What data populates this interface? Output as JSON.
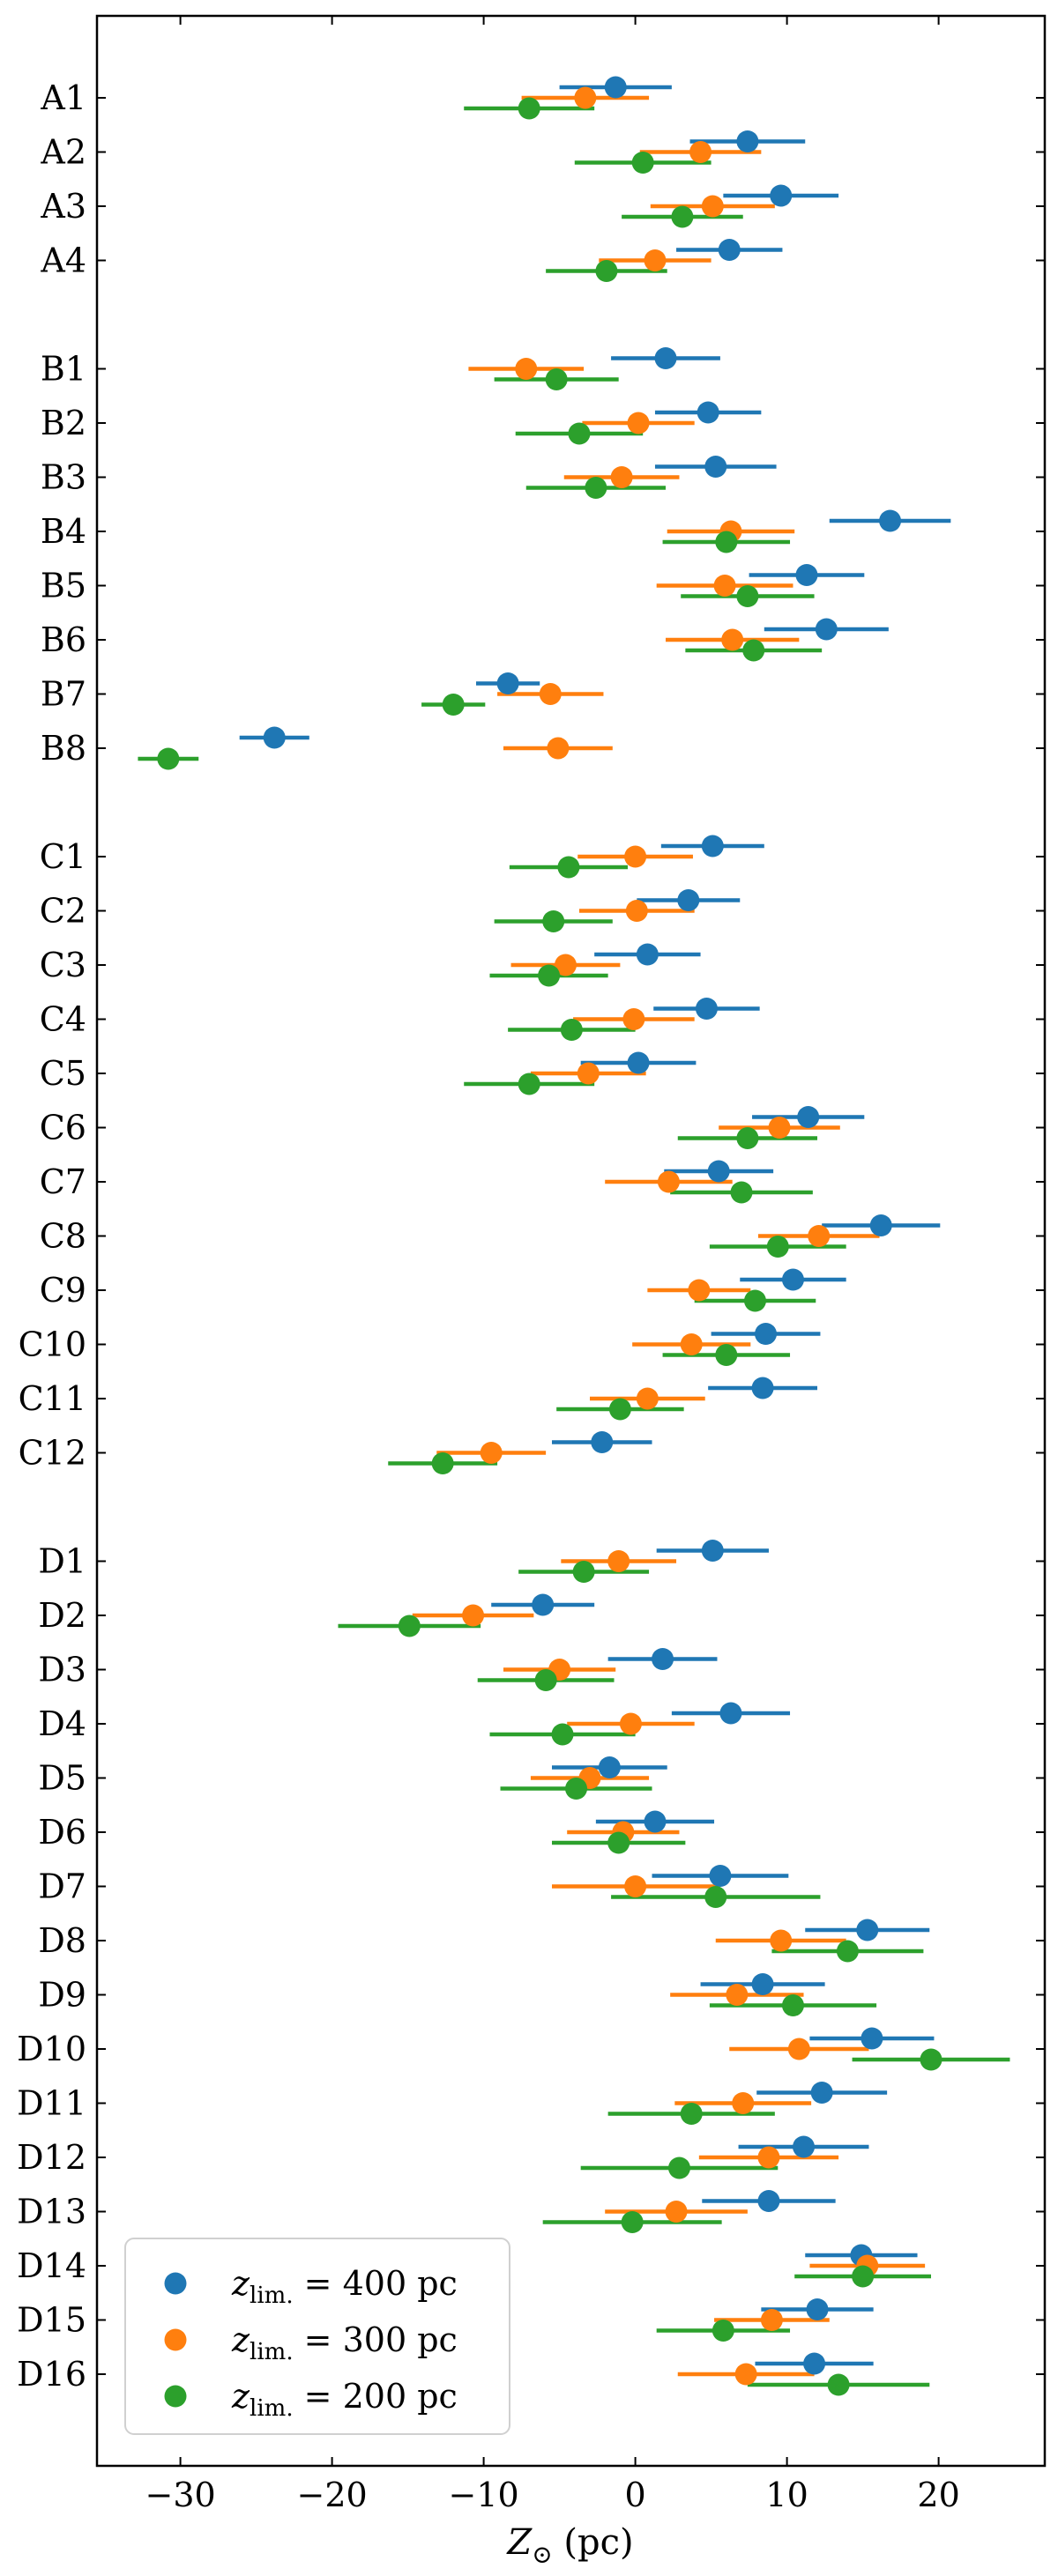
{
  "chart_data": {
    "type": "scatter",
    "title": "",
    "xlabel": "Z⊙ (pc)",
    "ylabel": "",
    "xlim": [
      -35.5,
      27.0
    ],
    "xticks": [
      -30,
      -20,
      -10,
      0,
      10,
      20
    ],
    "xtick_labels": [
      "−30",
      "−20",
      "−10",
      "0",
      "10",
      "20"
    ],
    "grid": false,
    "legend_position": "bottom-left",
    "groups": [
      {
        "name": "A",
        "labels": [
          "A1",
          "A2",
          "A3",
          "A4"
        ]
      },
      {
        "name": "B",
        "labels": [
          "B1",
          "B2",
          "B3",
          "B4",
          "B5",
          "B6",
          "B7",
          "B8"
        ]
      },
      {
        "name": "C",
        "labels": [
          "C1",
          "C2",
          "C3",
          "C4",
          "C5",
          "C6",
          "C7",
          "C8",
          "C9",
          "C10",
          "C11",
          "C12"
        ]
      },
      {
        "name": "D",
        "labels": [
          "D1",
          "D2",
          "D3",
          "D4",
          "D5",
          "D6",
          "D7",
          "D8",
          "D9",
          "D10",
          "D11",
          "D12",
          "D13",
          "D14",
          "D15",
          "D16"
        ]
      }
    ],
    "series": [
      {
        "name": "zlim. = 400 pc",
        "legend_main": "z",
        "legend_sub": "lim.",
        "legend_rest": " = 400 pc",
        "color": "#1f77b4",
        "values": {
          "A1": [
            -1.3,
            3.7
          ],
          "A2": [
            7.4,
            3.8
          ],
          "A3": [
            9.6,
            3.8
          ],
          "A4": [
            6.2,
            3.5
          ],
          "B1": [
            2.0,
            3.6
          ],
          "B2": [
            4.8,
            3.5
          ],
          "B3": [
            5.3,
            4.0
          ],
          "B4": [
            16.8,
            4.0
          ],
          "B5": [
            11.3,
            3.8
          ],
          "B6": [
            12.6,
            4.1
          ],
          "B7": [
            -8.4,
            2.1
          ],
          "B8": [
            -23.8,
            2.3
          ],
          "C1": [
            5.1,
            3.4
          ],
          "C2": [
            3.5,
            3.4
          ],
          "C3": [
            0.8,
            3.5
          ],
          "C4": [
            4.7,
            3.5
          ],
          "C5": [
            0.2,
            3.8
          ],
          "C6": [
            11.4,
            3.7
          ],
          "C7": [
            5.5,
            3.6
          ],
          "C8": [
            16.2,
            3.9
          ],
          "C9": [
            10.4,
            3.5
          ],
          "C10": [
            8.6,
            3.6
          ],
          "C11": [
            8.4,
            3.6
          ],
          "C12": [
            -2.2,
            3.3
          ],
          "D1": [
            5.1,
            3.7
          ],
          "D2": [
            -6.1,
            3.4
          ],
          "D3": [
            1.8,
            3.6
          ],
          "D4": [
            6.3,
            3.9
          ],
          "D5": [
            -1.7,
            3.8
          ],
          "D6": [
            1.3,
            3.9
          ],
          "D7": [
            5.6,
            4.5
          ],
          "D8": [
            15.3,
            4.1
          ],
          "D9": [
            8.4,
            4.1
          ],
          "D10": [
            15.6,
            4.1
          ],
          "D11": [
            12.3,
            4.3
          ],
          "D12": [
            11.1,
            4.3
          ],
          "D13": [
            8.8,
            4.4
          ],
          "D14": [
            14.9,
            3.7
          ],
          "D15": [
            12.0,
            3.7
          ],
          "D16": [
            11.8,
            3.9
          ]
        }
      },
      {
        "name": "zlim. = 300 pc",
        "legend_main": "z",
        "legend_sub": "lim.",
        "legend_rest": " = 300 pc",
        "color": "#ff7f0e",
        "values": {
          "A1": [
            -3.3,
            4.2
          ],
          "A2": [
            4.3,
            4.0
          ],
          "A3": [
            5.1,
            4.1
          ],
          "A4": [
            1.3,
            3.7
          ],
          "B1": [
            -7.2,
            3.8
          ],
          "B2": [
            0.2,
            3.7
          ],
          "B3": [
            -0.9,
            3.8
          ],
          "B4": [
            6.3,
            4.2
          ],
          "B5": [
            5.9,
            4.5
          ],
          "B6": [
            6.4,
            4.4
          ],
          "B7": [
            -5.6,
            3.5
          ],
          "B8": [
            -5.1,
            3.6
          ],
          "C1": [
            0.0,
            3.8
          ],
          "C2": [
            0.1,
            3.8
          ],
          "C3": [
            -4.6,
            3.6
          ],
          "C4": [
            -0.1,
            4.0
          ],
          "C5": [
            -3.1,
            3.8
          ],
          "C6": [
            9.5,
            4.0
          ],
          "C7": [
            2.2,
            4.2
          ],
          "C8": [
            12.1,
            4.0
          ],
          "C9": [
            4.2,
            3.4
          ],
          "C10": [
            3.7,
            3.9
          ],
          "C11": [
            0.8,
            3.8
          ],
          "C12": [
            -9.5,
            3.6
          ],
          "D1": [
            -1.1,
            3.8
          ],
          "D2": [
            -10.7,
            4.0
          ],
          "D3": [
            -5.0,
            3.7
          ],
          "D4": [
            -0.3,
            4.2
          ],
          "D5": [
            -3.0,
            3.9
          ],
          "D6": [
            -0.8,
            3.7
          ],
          "D7": [
            0.0,
            5.5
          ],
          "D8": [
            9.6,
            4.3
          ],
          "D9": [
            6.7,
            4.4
          ],
          "D10": [
            10.8,
            4.6
          ],
          "D11": [
            7.1,
            4.5
          ],
          "D12": [
            8.8,
            4.6
          ],
          "D13": [
            2.7,
            4.7
          ],
          "D14": [
            15.3,
            3.8
          ],
          "D15": [
            9.0,
            3.8
          ],
          "D16": [
            7.3,
            4.5
          ]
        }
      },
      {
        "name": "zlim. = 200 pc",
        "legend_main": "z",
        "legend_sub": "lim.",
        "legend_rest": " = 200 pc",
        "color": "#2ca02c",
        "values": {
          "A1": [
            -7.0,
            4.3
          ],
          "A2": [
            0.5,
            4.5
          ],
          "A3": [
            3.1,
            4.0
          ],
          "A4": [
            -1.9,
            4.0
          ],
          "B1": [
            -5.2,
            4.1
          ],
          "B2": [
            -3.7,
            4.2
          ],
          "B3": [
            -2.6,
            4.6
          ],
          "B4": [
            6.0,
            4.2
          ],
          "B5": [
            7.4,
            4.4
          ],
          "B6": [
            7.8,
            4.5
          ],
          "B7": [
            -12.0,
            2.1
          ],
          "B8": [
            -30.8,
            2.0
          ],
          "C1": [
            -4.4,
            3.9
          ],
          "C2": [
            -5.4,
            3.9
          ],
          "C3": [
            -5.7,
            3.9
          ],
          "C4": [
            -4.2,
            4.2
          ],
          "C5": [
            -7.0,
            4.3
          ],
          "C6": [
            7.4,
            4.6
          ],
          "C7": [
            7.0,
            4.7
          ],
          "C8": [
            9.4,
            4.5
          ],
          "C9": [
            7.9,
            4.0
          ],
          "C10": [
            6.0,
            4.2
          ],
          "C11": [
            -1.0,
            4.2
          ],
          "C12": [
            -12.7,
            3.6
          ],
          "D1": [
            -3.4,
            4.3
          ],
          "D2": [
            -14.9,
            4.7
          ],
          "D3": [
            -5.9,
            4.5
          ],
          "D4": [
            -4.8,
            4.8
          ],
          "D5": [
            -3.9,
            5.0
          ],
          "D6": [
            -1.1,
            4.4
          ],
          "D7": [
            5.3,
            6.9
          ],
          "D8": [
            14.0,
            5.0
          ],
          "D9": [
            10.4,
            5.5
          ],
          "D10": [
            19.5,
            5.2
          ],
          "D11": [
            3.7,
            5.5
          ],
          "D12": [
            2.9,
            6.5
          ],
          "D13": [
            -0.2,
            5.9
          ],
          "D14": [
            15.0,
            4.5
          ],
          "D15": [
            5.8,
            4.4
          ],
          "D16": [
            13.4,
            6.0
          ]
        }
      }
    ]
  }
}
